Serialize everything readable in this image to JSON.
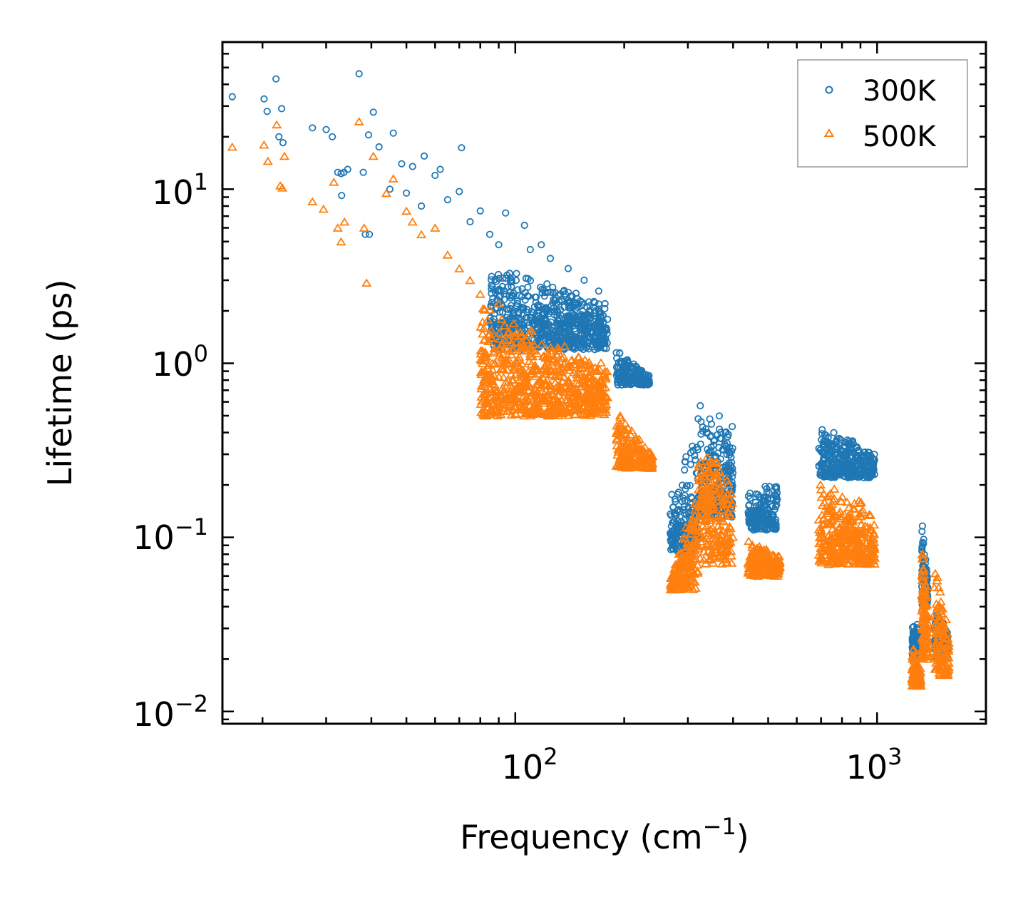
{
  "chart_data": {
    "type": "scatter",
    "title": "",
    "xlabel": "Frequency (cm",
    "xlabel_sup": "−1",
    "xlabel_end": ")",
    "ylabel": "Lifetime (ps)",
    "xscale": "log",
    "yscale": "log",
    "xlim": [
      15.5,
      2000
    ],
    "ylim": [
      0.0085,
      70
    ],
    "x_ticks": [
      {
        "base": "10",
        "exp": "2",
        "value": 100
      },
      {
        "base": "10",
        "exp": "3",
        "value": 1000
      }
    ],
    "y_ticks": [
      {
        "base": "10",
        "exp": "1",
        "value": 10
      },
      {
        "base": "10",
        "exp": "0",
        "value": 1
      },
      {
        "base": "10",
        "exp": "−1",
        "value": 0.1
      },
      {
        "base": "10",
        "exp": "−2",
        "value": 0.01
      }
    ],
    "legend_position": "top-right",
    "series": [
      {
        "name": "300K",
        "marker": "circle-open",
        "color": "#1f77b4",
        "points": [
          [
            16.5,
            34
          ],
          [
            20.2,
            33
          ],
          [
            20.6,
            28
          ],
          [
            21.8,
            43
          ],
          [
            22.6,
            29
          ],
          [
            22.2,
            20
          ],
          [
            22.8,
            18.5
          ],
          [
            27.5,
            22.5
          ],
          [
            30,
            22
          ],
          [
            31.2,
            20
          ],
          [
            32.3,
            12.5
          ],
          [
            33,
            12.3
          ],
          [
            33.6,
            12.5
          ],
          [
            33.1,
            9.2
          ],
          [
            34.4,
            13
          ],
          [
            37,
            46
          ],
          [
            38,
            12.5
          ],
          [
            39.3,
            20.5
          ],
          [
            40.5,
            27.7
          ],
          [
            42,
            17.5
          ],
          [
            46,
            21
          ],
          [
            48.5,
            14
          ],
          [
            52,
            13.5
          ],
          [
            56,
            15.5
          ],
          [
            62,
            13
          ],
          [
            71,
            17.3
          ],
          [
            70,
            9.7
          ],
          [
            80,
            7.5
          ],
          [
            94,
            7.3
          ],
          [
            106,
            6.2
          ],
          [
            118,
            4.8
          ],
          [
            38.5,
            5.5
          ],
          [
            39.5,
            5.5
          ],
          [
            45,
            10
          ],
          [
            50,
            9.5
          ],
          [
            55,
            8
          ],
          [
            60,
            12
          ],
          [
            65,
            8.7
          ],
          [
            75,
            6.5
          ],
          [
            85,
            5.5
          ],
          [
            90,
            4.8
          ],
          [
            110,
            4.5
          ],
          [
            125,
            4
          ],
          [
            140,
            3.5
          ],
          [
            155,
            3
          ],
          [
            170,
            2.6
          ],
          [
            177,
            2.2
          ]
        ],
        "bands": [
          [
            85,
            180,
            3.8,
            2.2,
            1.2
          ],
          [
            190,
            235,
            1.2,
            0.85,
            0.75
          ],
          [
            268,
            320,
            0.17,
            0.5,
            0.08
          ],
          [
            320,
            400,
            0.65,
            0.45,
            0.13
          ],
          [
            440,
            530,
            0.2,
            0.2,
            0.11
          ],
          [
            690,
            985,
            0.45,
            0.32,
            0.22
          ],
          [
            1250,
            1320,
            0.035,
            0.03,
            0.02
          ],
          [
            1330,
            1380,
            0.13,
            0.06,
            0.04
          ],
          [
            1440,
            1570,
            0.04,
            0.03,
            0.02
          ]
        ]
      },
      {
        "name": "500K",
        "marker": "triangle-open",
        "color": "#ff7f0e",
        "points": [
          [
            16.5,
            17.5
          ],
          [
            20.2,
            18
          ],
          [
            20.7,
            14.5
          ],
          [
            21.9,
            23.5
          ],
          [
            22.4,
            10.5
          ],
          [
            23,
            15.5
          ],
          [
            22.7,
            10.2
          ],
          [
            27.5,
            8.5
          ],
          [
            29.5,
            7.7
          ],
          [
            31.5,
            11
          ],
          [
            32.3,
            6
          ],
          [
            33,
            5
          ],
          [
            33.7,
            6.5
          ],
          [
            37,
            24.5
          ],
          [
            38.2,
            6
          ],
          [
            38.8,
            2.9
          ],
          [
            40.5,
            15.5
          ],
          [
            44,
            9.5
          ],
          [
            46,
            11.5
          ],
          [
            50,
            7.5
          ],
          [
            52,
            6.5
          ],
          [
            55,
            5.5
          ],
          [
            60,
            6
          ],
          [
            65,
            4.2
          ],
          [
            70,
            3.5
          ],
          [
            75,
            3
          ],
          [
            80,
            2.5
          ],
          [
            90,
            2.2
          ]
        ],
        "bands": [
          [
            80,
            180,
            2.2,
            1.0,
            0.5
          ],
          [
            190,
            240,
            0.55,
            0.3,
            0.25
          ],
          [
            268,
            320,
            0.06,
            0.2,
            0.05
          ],
          [
            320,
            400,
            0.45,
            0.2,
            0.07
          ],
          [
            440,
            540,
            0.1,
            0.08,
            0.06
          ],
          [
            690,
            985,
            0.22,
            0.15,
            0.07
          ],
          [
            1250,
            1320,
            0.025,
            0.018,
            0.014
          ],
          [
            1330,
            1380,
            0.1,
            0.04,
            0.02
          ],
          [
            1440,
            1580,
            0.08,
            0.03,
            0.016
          ]
        ]
      }
    ]
  }
}
